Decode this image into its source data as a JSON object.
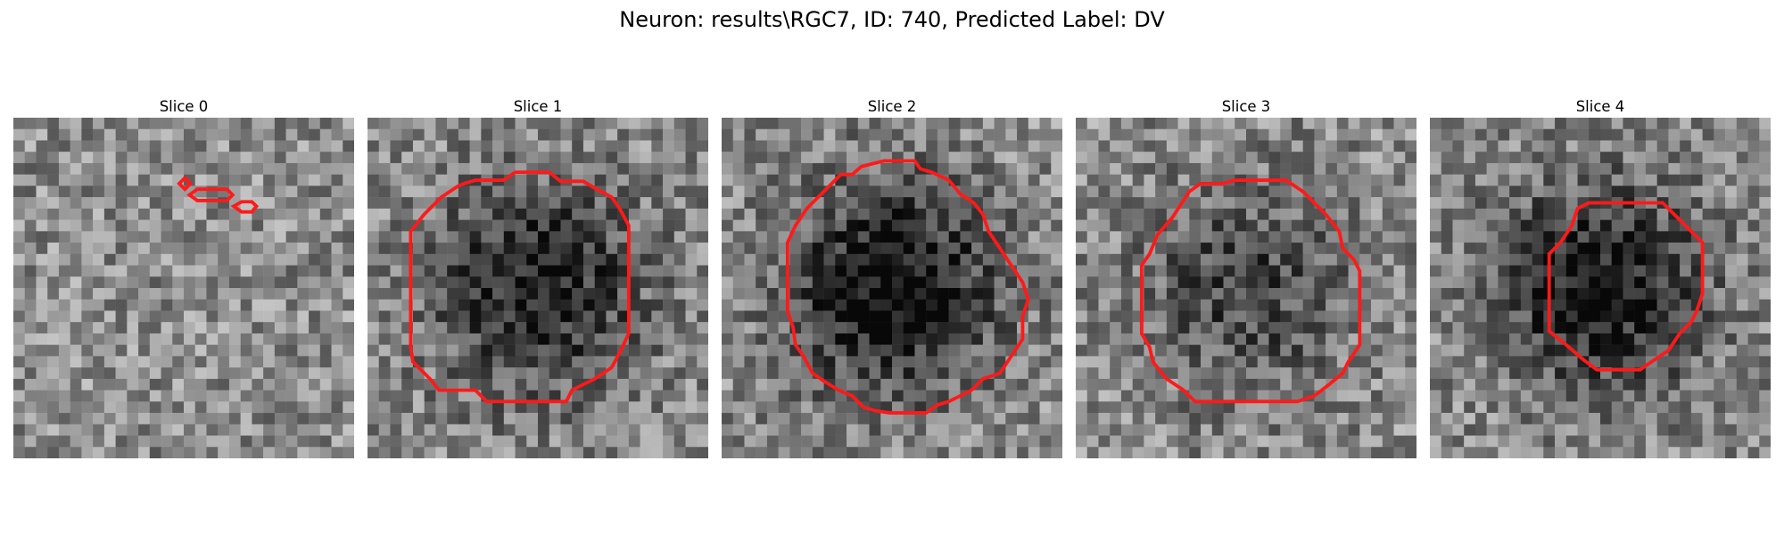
{
  "figure": {
    "title": "Neuron: results\\RGC7, ID: 740, Predicted Label: DV"
  },
  "panels": [
    {
      "title": "Slice 0",
      "seed": 11,
      "blob": 0.0
    },
    {
      "title": "Slice 1",
      "seed": 23,
      "blob": 0.45
    },
    {
      "title": "Slice 2",
      "seed": 37,
      "blob": 0.55
    },
    {
      "title": "Slice 3",
      "seed": 41,
      "blob": 0.3
    },
    {
      "title": "Slice 4",
      "seed": 53,
      "blob": 0.5
    }
  ],
  "colors": {
    "contour": "#ff1a1a"
  }
}
